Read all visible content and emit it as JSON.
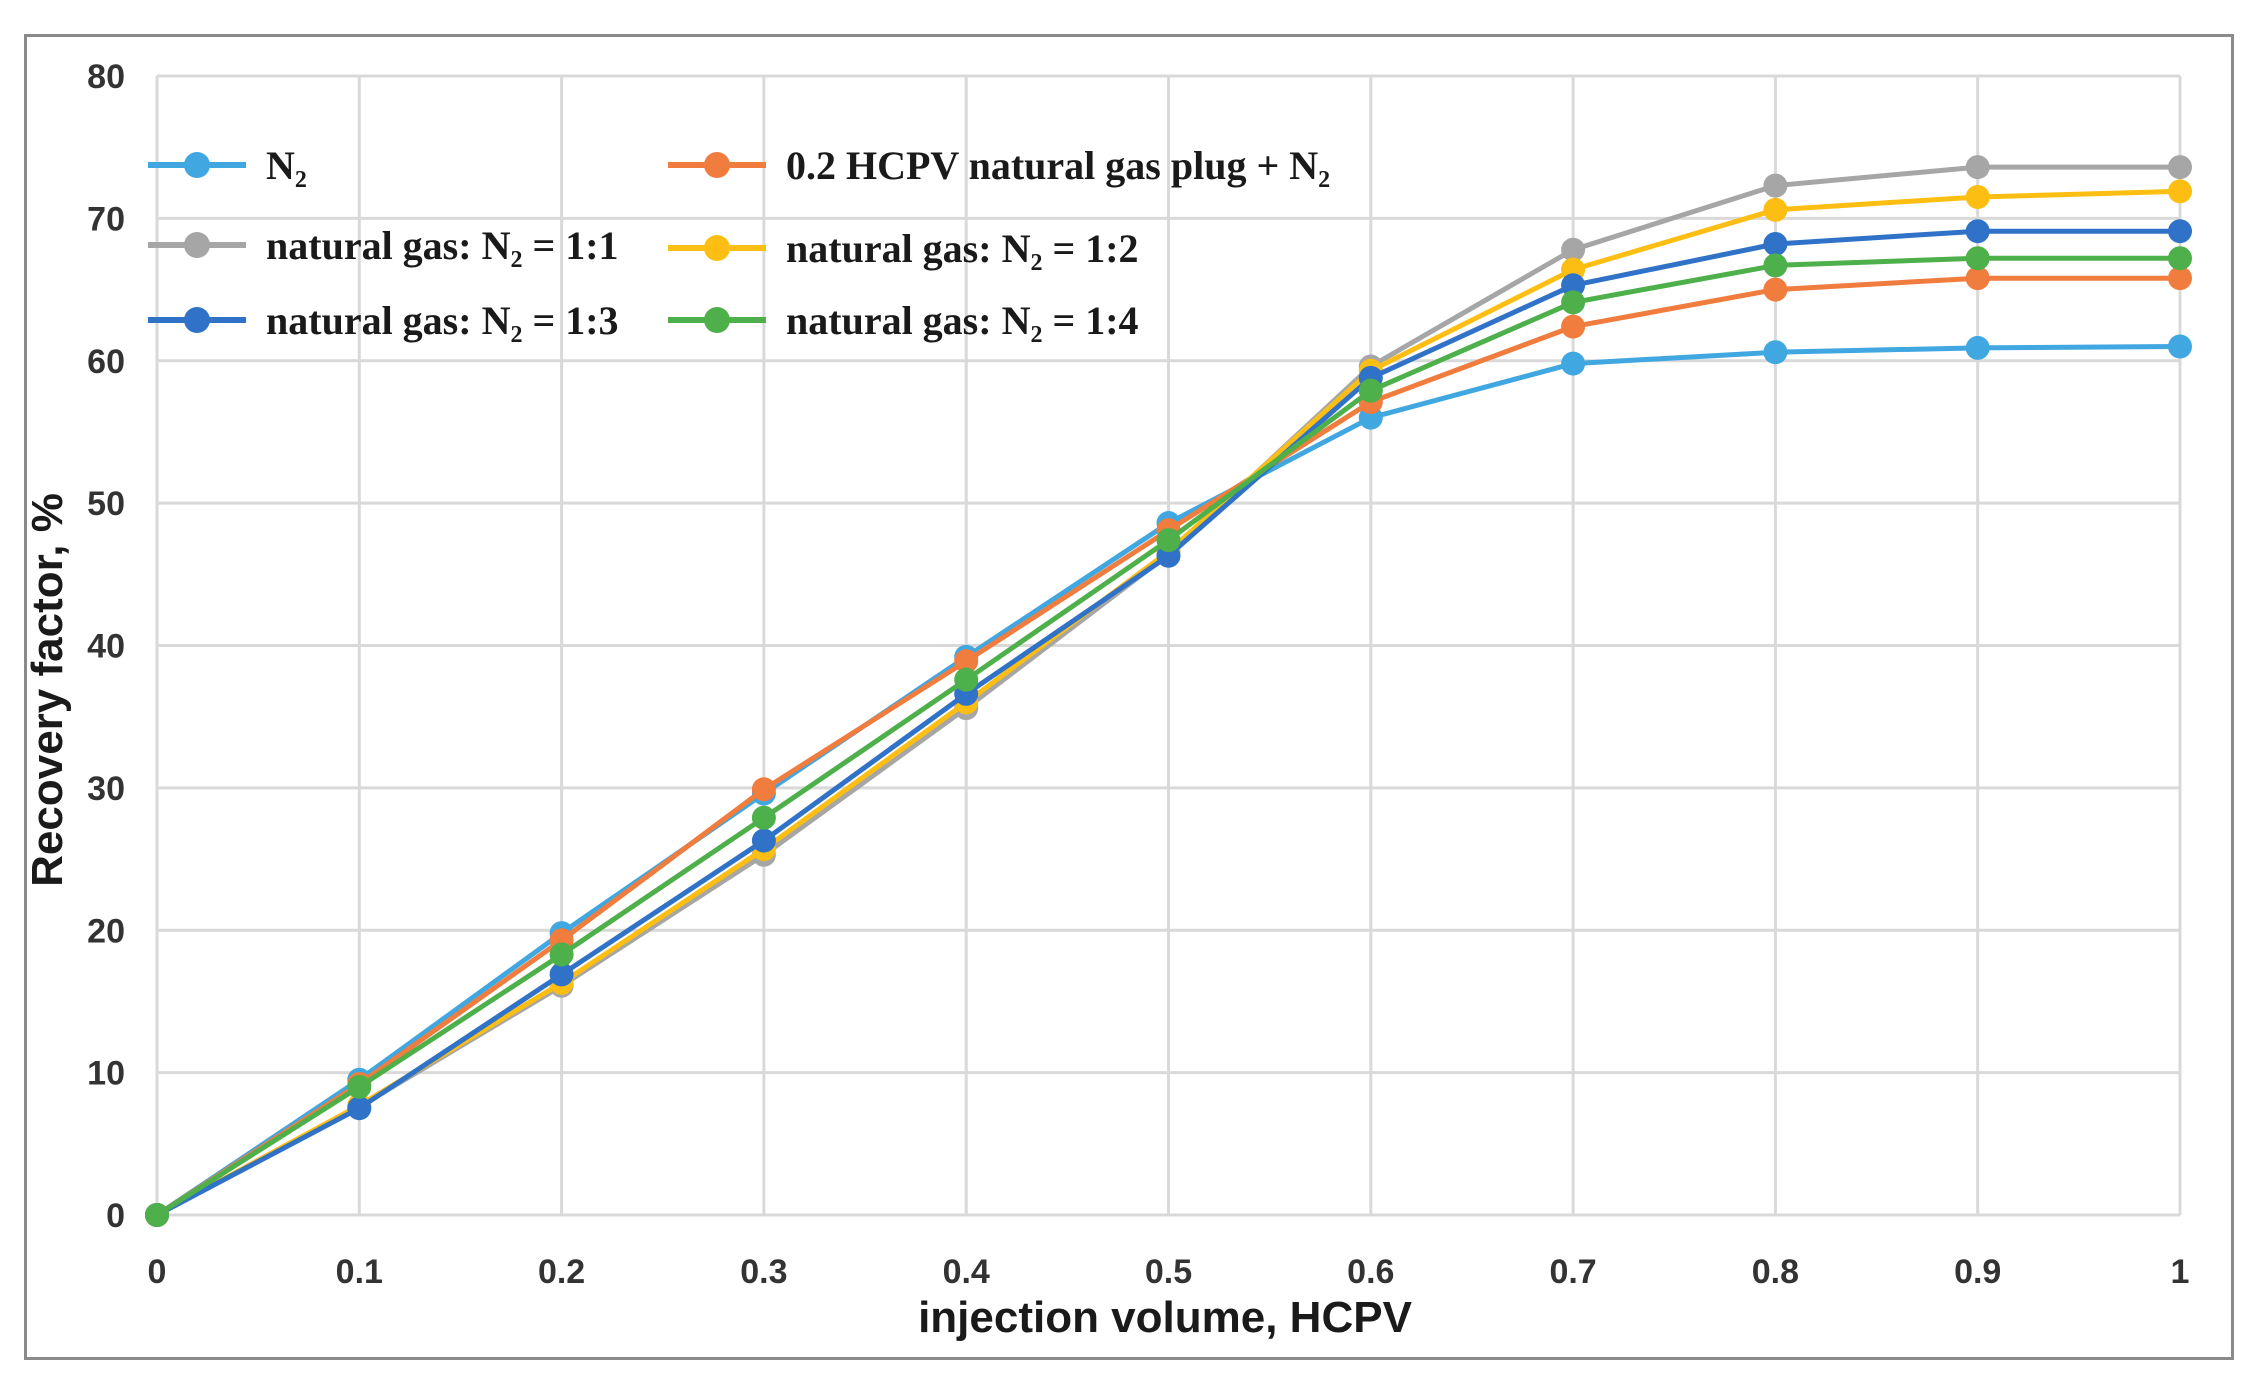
{
  "chart_data": {
    "type": "line",
    "title": "",
    "xlabel": "injection volume,  HCPV",
    "ylabel": "Recovery factor,  %",
    "x": [
      0,
      0.1,
      0.2,
      0.3,
      0.4,
      0.5,
      0.6,
      0.7,
      0.8,
      0.9,
      1
    ],
    "x_tick_labels": [
      "0",
      "0.1",
      "0.2",
      "0.3",
      "0.4",
      "0.5",
      "0.6",
      "0.7",
      "0.8",
      "0.9",
      "1"
    ],
    "xlim": [
      0,
      1
    ],
    "ylim": [
      0,
      80
    ],
    "y_ticks": [
      0,
      10,
      20,
      30,
      40,
      50,
      60,
      70,
      80
    ],
    "y_tick_labels": [
      "0",
      "10",
      "20",
      "30",
      "40",
      "50",
      "60",
      "70",
      "80"
    ],
    "grid": true,
    "legend_position": "top-left, inside plot",
    "series": [
      {
        "name": "N₂",
        "color": "#41a7e0",
        "values": [
          0,
          9.5,
          19.8,
          29.6,
          39.2,
          48.6,
          56.0,
          59.8,
          60.6,
          60.9,
          61.0
        ]
      },
      {
        "name": "0.2 HCPV natural gas plug + N₂",
        "color": "#f07c3e",
        "values": [
          0,
          9.2,
          19.3,
          29.9,
          38.9,
          48.1,
          57.1,
          62.4,
          65.0,
          65.8,
          65.8
        ]
      },
      {
        "name": "natural gas: N₂ = 1:1",
        "color": "#a6a6a6",
        "values": [
          0,
          7.6,
          16.1,
          25.3,
          35.6,
          46.4,
          59.6,
          67.8,
          72.3,
          73.6,
          73.6
        ]
      },
      {
        "name": "natural gas: N₂ = 1:2",
        "color": "#fcbe12",
        "values": [
          0,
          7.7,
          16.3,
          25.7,
          36.0,
          46.6,
          59.3,
          66.4,
          70.6,
          71.5,
          71.9
        ]
      },
      {
        "name": "natural gas: N₂ = 1:3",
        "color": "#2f72c7",
        "values": [
          0,
          7.5,
          16.9,
          26.3,
          36.6,
          46.3,
          58.8,
          65.3,
          68.2,
          69.1,
          69.1
        ]
      },
      {
        "name": "natural gas: N₂ = 1:4",
        "color": "#4db04a",
        "values": [
          0,
          9.0,
          18.3,
          27.9,
          37.6,
          47.4,
          57.9,
          64.1,
          66.7,
          67.2,
          67.2
        ]
      }
    ]
  }
}
